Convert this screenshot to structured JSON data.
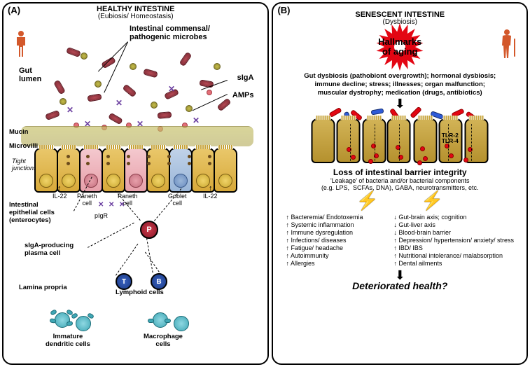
{
  "panelA": {
    "letter": "(A)",
    "title": "HEALTHY INTESTINE",
    "subtitle": "(Eubiosis/ Homeostasis)",
    "gut_lumen": "Gut\nlumen",
    "commensal": "Intestinal commensal/\npathogenic microbes",
    "siga": "sIgA",
    "amps": "AMPs",
    "mucin": "Mucin",
    "microvilli": "Microvilli",
    "tight": "Tight\njunctions",
    "il22": "IL-22",
    "paneth": "Paneth\ncell",
    "goblet": "Goblet\ncell",
    "iec": "Intestinal\nepithelial cells\n(enterocytes)",
    "pigr": "pIgR",
    "plasma": "sIgA-producing\nplasma cell",
    "lamina": "Lamina propria",
    "lymphoid": "Lymphoid cells",
    "idc": "Immature\ndendritic cells",
    "mac": "Macrophage\ncells"
  },
  "panelB": {
    "letter": "(B)",
    "title": "SENESCENT INTESTINE",
    "subtitle": "(Dysbiosis)",
    "hallmarks": "Hallmarks\nof aging",
    "factors": "Gut dysbiosis (pathobiont overgrowth); hormonal dysbiosis;\nimmune decline; stress; illnesses; organ malfunction;\nmuscular dystrophy; medication (drugs, antibiotics)",
    "loss_title": "Loss of intestinal barrier integrity",
    "loss_sub": "'Leakage' of bacteria and/or bacterial components\n(e.g. LPS,  SCFAs, DNA), GABA, neurotransmitters, etc.",
    "tlr": "TLR-2\nTLR-4",
    "effects_left": [
      "↑ Bacteremia/ Endotoxemia",
      "↑ Systemic inflammation",
      "↑ Immune dysregulation",
      "↑ Infections/ diseases",
      "↑ Fatigue/ headache",
      "↑ Autoimmunity",
      "↑ Allergies"
    ],
    "effects_right": [
      "↓ Gut-brain axis; cognition",
      "↓ Gut-liver axis",
      "↓ Blood-brain barrier",
      "↑ Depression/ hypertension/ anxiety/ stress",
      "↑ IBD/ IBS",
      "↑ Nutritional intolerance/ malabsorption",
      "↑ Dental ailments"
    ],
    "deteriorated": "Deteriorated health?"
  },
  "colors": {
    "accent_red": "#e30613",
    "person": "#d3582b",
    "epi_gold": "#d7a93a",
    "rod_red": "#8b303a",
    "arrow": "#000000"
  }
}
